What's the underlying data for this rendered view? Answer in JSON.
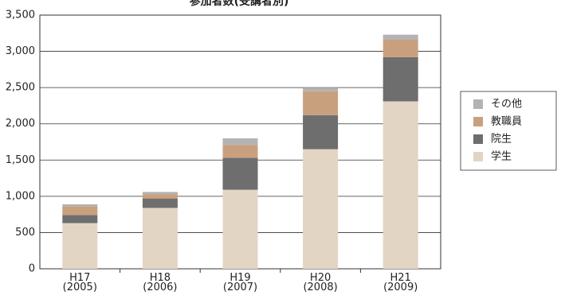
{
  "chart_data": {
    "type": "bar",
    "stacked": true,
    "title": "参加者数(受講者別)",
    "categories": [
      "H17\n(2005)",
      "H18\n(2006)",
      "H19\n(2007)",
      "H20\n(2008)",
      "H21\n(2009)"
    ],
    "series": [
      {
        "name": "学生",
        "color": "#e2d5c4",
        "values": [
          630,
          840,
          1090,
          1650,
          2310
        ]
      },
      {
        "name": "院生",
        "color": "#6e6e6e",
        "values": [
          110,
          130,
          440,
          470,
          610
        ]
      },
      {
        "name": "教職員",
        "color": "#c9a07e",
        "values": [
          120,
          60,
          180,
          330,
          240
        ]
      },
      {
        "name": "その他",
        "color": "#b3b3b3",
        "values": [
          30,
          30,
          90,
          50,
          70
        ]
      }
    ],
    "ylim": [
      0,
      3500
    ],
    "yticks": [
      0,
      500,
      {
        "value": 1000,
        "label": "1,000"
      },
      {
        "value": 1500,
        "label": "1,500"
      },
      {
        "value": 2000,
        "label": "2,000"
      },
      {
        "value": 2500,
        "label": "2,500"
      },
      {
        "value": 3000,
        "label": "3,000"
      },
      {
        "value": 3500,
        "label": "3,500"
      }
    ],
    "grid": true,
    "legend": "right"
  }
}
